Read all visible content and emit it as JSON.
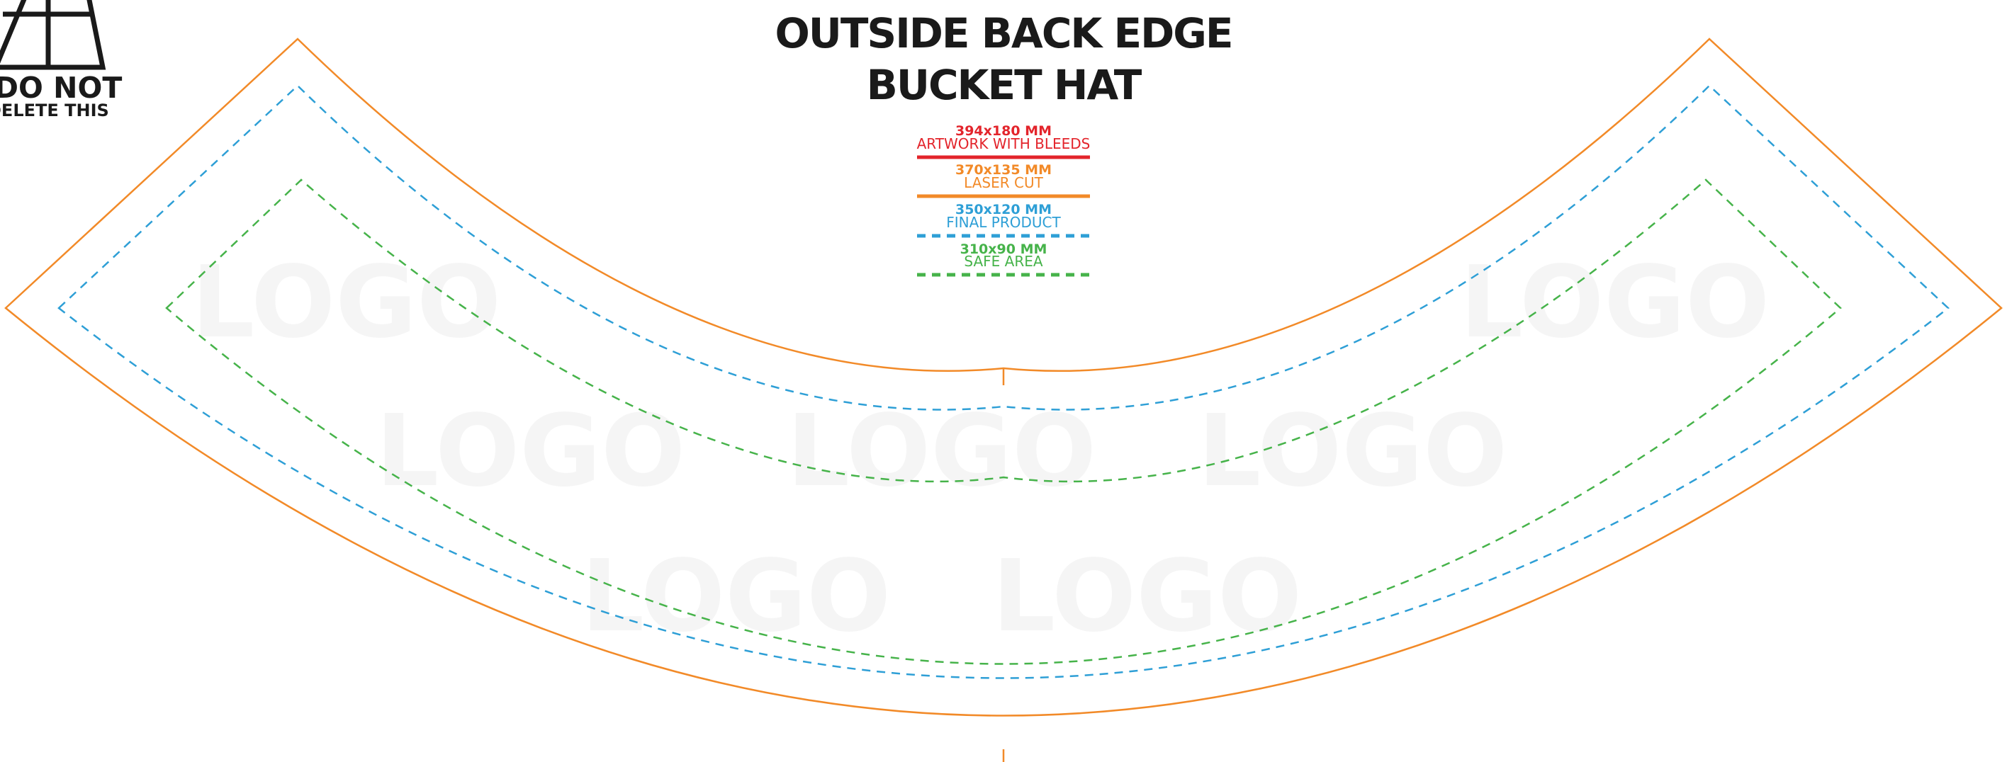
{
  "title": {
    "line1": "OUTSIDE BACK EDGE",
    "line2": "BUCKET HAT"
  },
  "warning": {
    "line1": "DO NOT",
    "line2": "DELETE THIS",
    "icon": "warning-triangle-icon"
  },
  "watermark": {
    "text": "LOGO"
  },
  "legend": [
    {
      "size": "394x180 MM",
      "label": "ARTWORK WITH BLEEDS",
      "color": "#e3242b",
      "style": "solid"
    },
    {
      "size": "370x135 MM",
      "label": "LASER CUT",
      "color": "#f28a28",
      "style": "solid"
    },
    {
      "size": "350x120 MM",
      "label": "FINAL PRODUCT",
      "color": "#2e9fd6",
      "style": "dashed"
    },
    {
      "size": "310x90 MM",
      "label": "SAFE AREA",
      "color": "#46b34a",
      "style": "dashed"
    }
  ],
  "colors": {
    "laser_cut": "#f28a28",
    "final_product": "#2e9fd6",
    "safe_area": "#46b34a",
    "artwork_bleed": "#e3242b",
    "text": "#1a1a1a",
    "watermark": "#f5f5f5"
  }
}
